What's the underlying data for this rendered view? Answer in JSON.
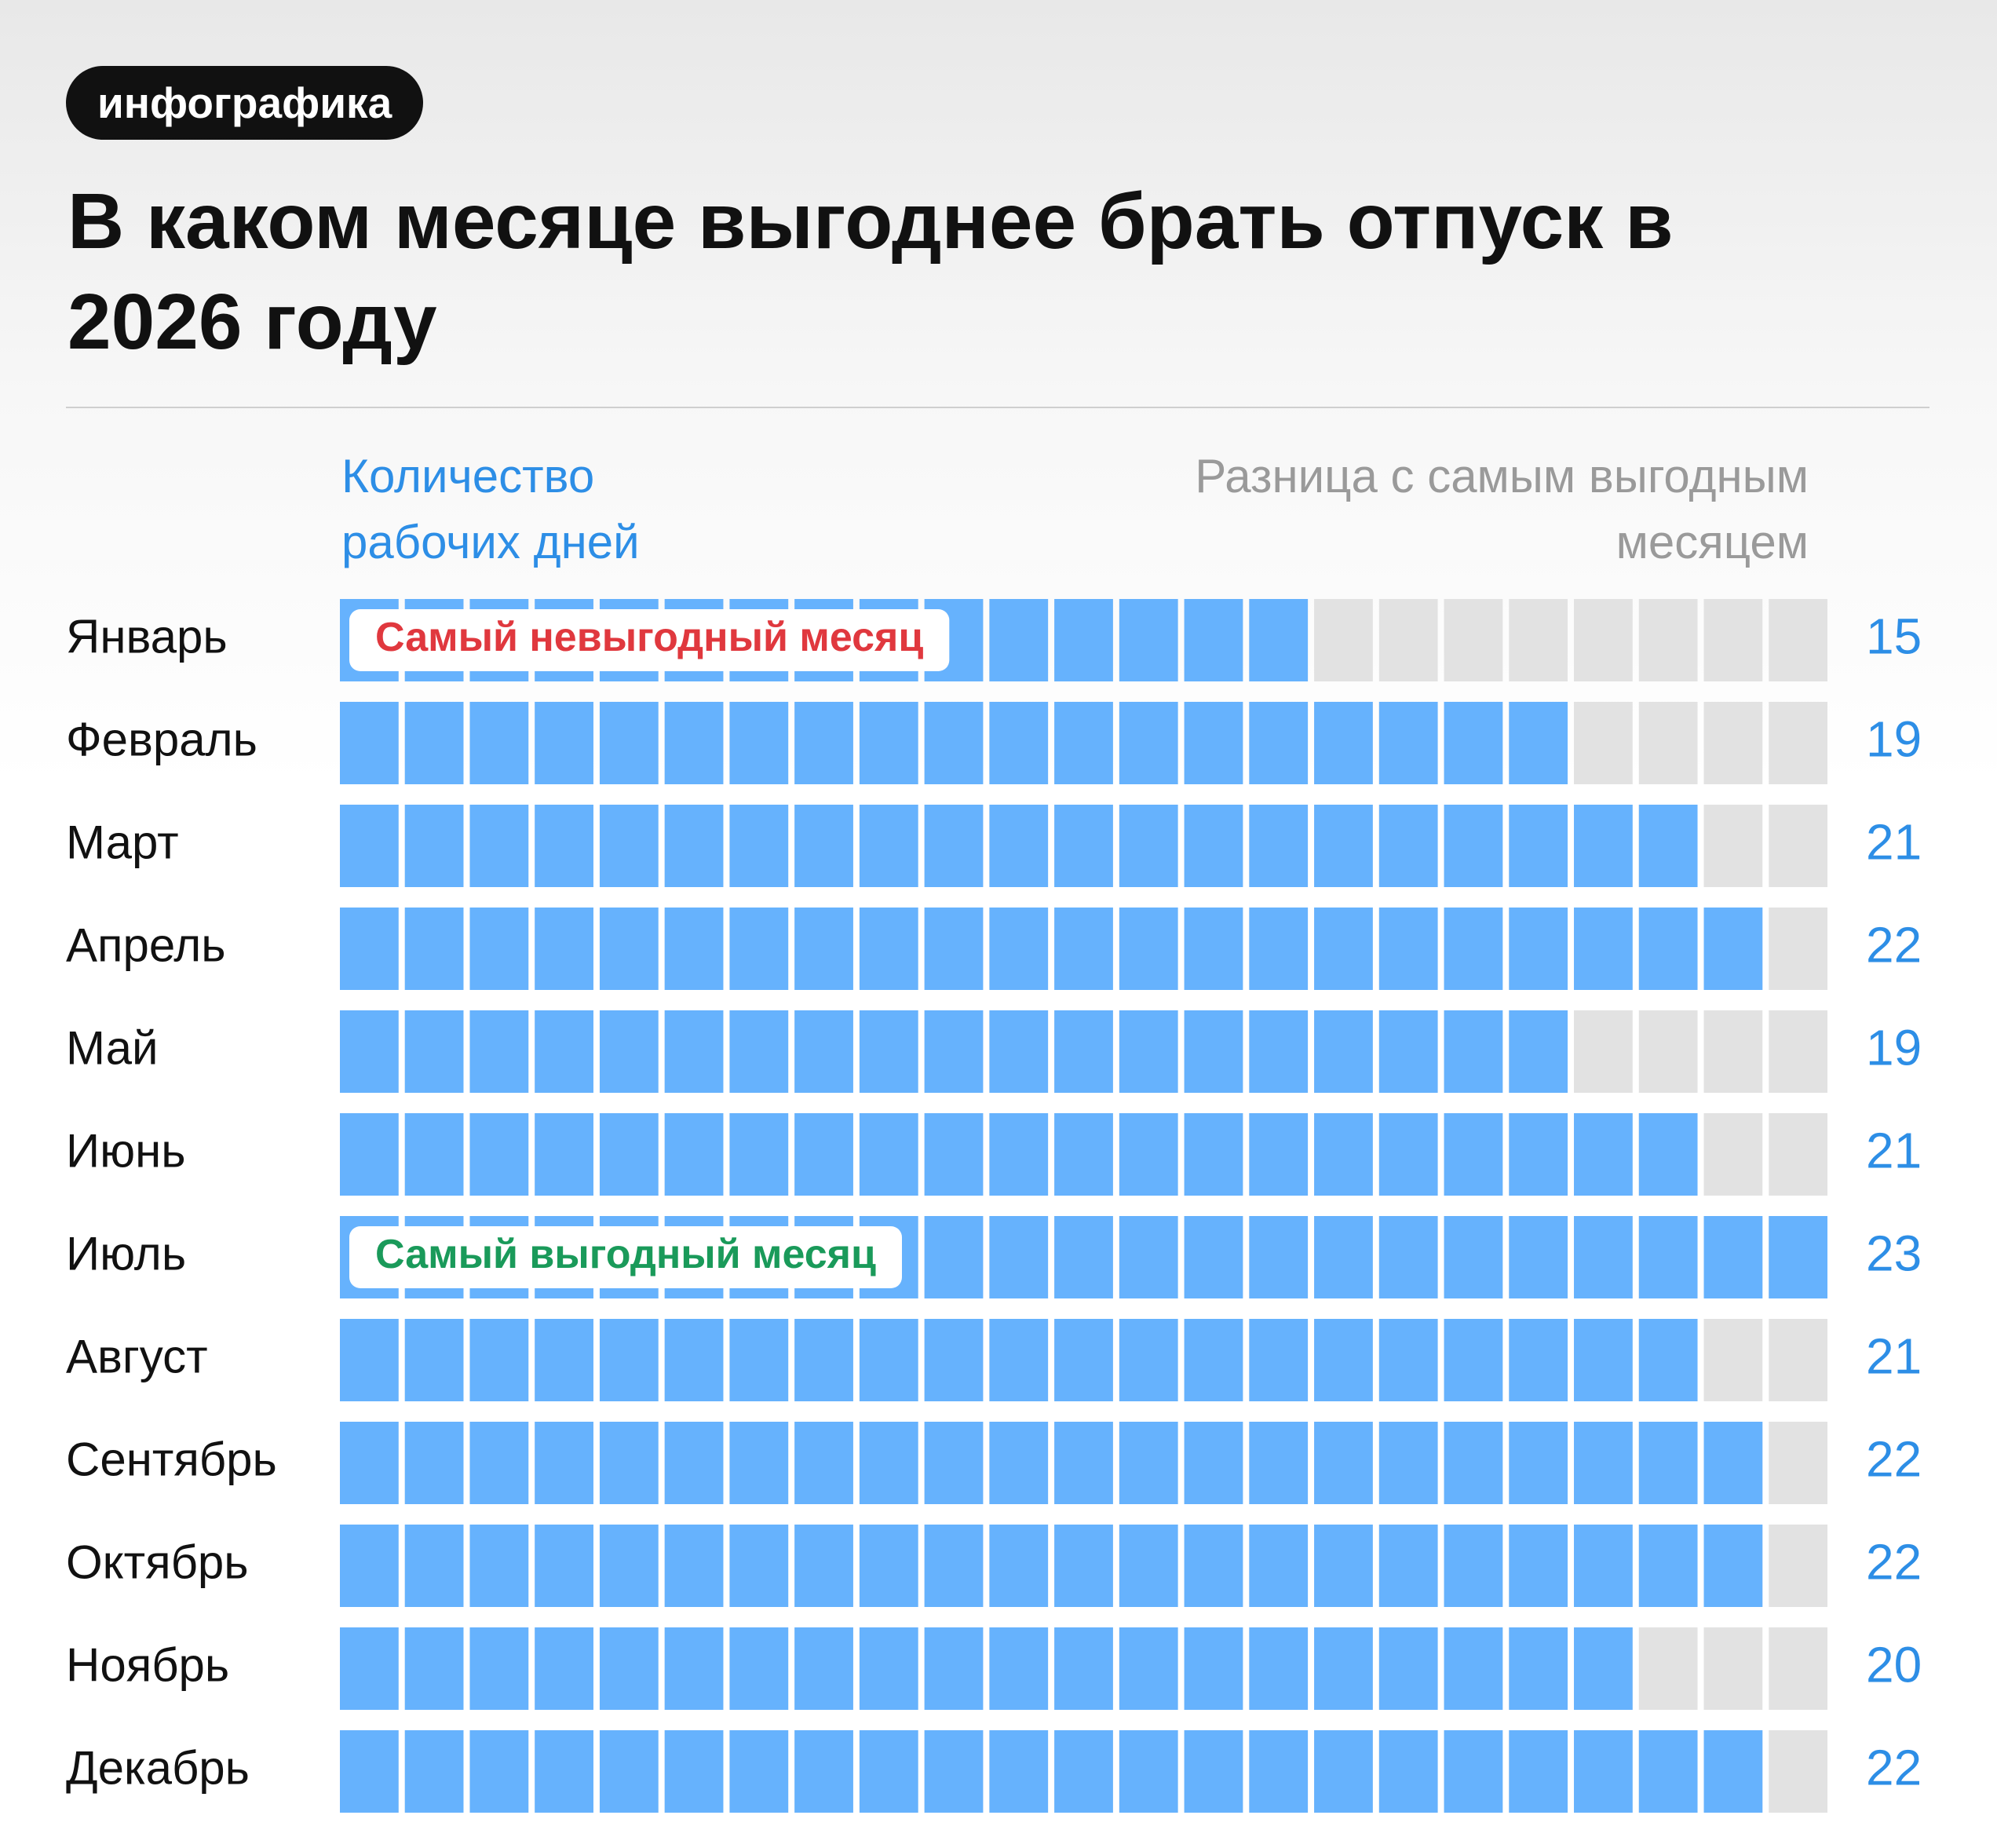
{
  "chart_data": {
    "type": "waffle",
    "tag": "инфографика",
    "title": "В каком месяце выгоднее брать отпуск в 2026 году",
    "y_label": "Количество рабочих дней",
    "value_label_title": "Разница с самым выгодным месяцем",
    "categories": [
      "Январь",
      "Февраль",
      "Март",
      "Апрель",
      "Май",
      "Июнь",
      "Июль",
      "Август",
      "Сентябрь",
      "Октябрь",
      "Ноябрь",
      "Декабрь"
    ],
    "values": [
      15,
      19,
      21,
      22,
      19,
      21,
      23,
      21,
      22,
      22,
      20,
      22
    ],
    "xlim": [
      0,
      23
    ],
    "color": "#66b2fd",
    "empty_color": "#e2e2e2",
    "value_label_color": "#2d8ee6",
    "annotations": [
      {
        "text": "Самый невыгодный месяц",
        "category": "Январь",
        "color": "#e0383e"
      },
      {
        "text": "Самый выгодный месяц",
        "category": "Июль",
        "color": "#1a9a5a"
      }
    ]
  }
}
